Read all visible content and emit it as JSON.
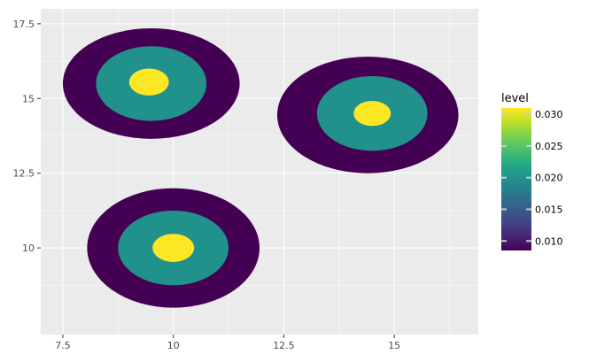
{
  "chart_data": {
    "type": "filled-density-contour",
    "title": "",
    "xlabel": "",
    "ylabel": "",
    "xlim": [
      7.0,
      16.9
    ],
    "ylim": [
      7.1,
      18.0
    ],
    "x_ticks": [
      7.5,
      10,
      12.5,
      15
    ],
    "x_tick_labels": [
      "7.5",
      "10",
      "12.5",
      "15"
    ],
    "y_ticks": [
      10,
      12.5,
      15,
      17.5
    ],
    "y_tick_labels": [
      "10",
      "12.5",
      "15",
      "17.5"
    ],
    "grid": true,
    "panel_background": "#ebebeb",
    "legend": {
      "title": "level",
      "position": "right",
      "range": [
        0.0085,
        0.031
      ],
      "ticks": [
        0.01,
        0.015,
        0.02,
        0.025,
        0.03
      ],
      "tick_labels": [
        "0.010",
        "0.015",
        "0.020",
        "0.025",
        "0.030"
      ],
      "colormap": "viridis"
    },
    "levels": [
      {
        "level": 0.01,
        "color": "#440154"
      },
      {
        "level": 0.02,
        "color": "#21918c"
      },
      {
        "level": 0.03,
        "color": "#fde725"
      }
    ],
    "clusters": [
      {
        "center": [
          9.5,
          15.5
        ],
        "contours": [
          {
            "level": 0.01,
            "cx": 9.5,
            "cy": 15.5,
            "rx": 2.0,
            "ry": 1.85
          },
          {
            "level": 0.02,
            "cx": 9.5,
            "cy": 15.5,
            "rx": 1.25,
            "ry": 1.25
          },
          {
            "level": 0.03,
            "cx": 9.45,
            "cy": 15.55,
            "rx": 0.45,
            "ry": 0.45
          }
        ]
      },
      {
        "center": [
          14.5,
          14.5
        ],
        "contours": [
          {
            "level": 0.01,
            "cx": 14.4,
            "cy": 14.45,
            "rx": 2.05,
            "ry": 1.95
          },
          {
            "level": 0.02,
            "cx": 14.5,
            "cy": 14.5,
            "rx": 1.25,
            "ry": 1.25
          },
          {
            "level": 0.03,
            "cx": 14.5,
            "cy": 14.5,
            "rx": 0.42,
            "ry": 0.42
          }
        ]
      },
      {
        "center": [
          10.0,
          10.0
        ],
        "contours": [
          {
            "level": 0.01,
            "cx": 10.0,
            "cy": 10.0,
            "rx": 1.95,
            "ry": 2.0
          },
          {
            "level": 0.02,
            "cx": 10.0,
            "cy": 10.0,
            "rx": 1.25,
            "ry": 1.25
          },
          {
            "level": 0.03,
            "cx": 10.0,
            "cy": 10.0,
            "rx": 0.47,
            "ry": 0.47
          }
        ]
      }
    ]
  }
}
